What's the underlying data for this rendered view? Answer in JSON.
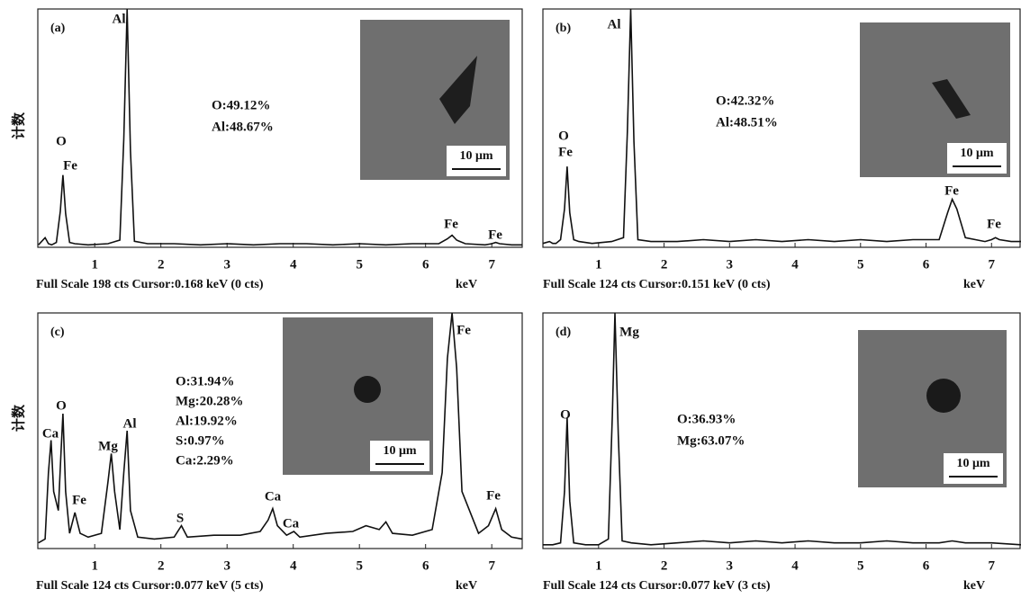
{
  "chart_data": [
    {
      "type": "line",
      "panel_label": "(a)",
      "ylabel": "计数",
      "color": "#111",
      "x": [
        0.15,
        0.25,
        0.3,
        0.35,
        0.42,
        0.48,
        0.52,
        0.56,
        0.62,
        0.7,
        0.9,
        1.2,
        1.38,
        1.44,
        1.49,
        1.54,
        1.6,
        1.8,
        2.2,
        2.6,
        3.0,
        3.4,
        3.8,
        4.2,
        4.6,
        5.0,
        5.4,
        5.8,
        6.2,
        6.33,
        6.4,
        6.47,
        6.6,
        6.9,
        7.0,
        7.06,
        7.12,
        7.3,
        7.46
      ],
      "values": [
        2,
        8,
        3,
        2,
        4,
        30,
        60,
        28,
        4,
        3,
        2,
        3,
        6,
        90,
        198,
        80,
        5,
        3,
        3,
        2,
        3,
        2,
        3,
        3,
        2,
        3,
        2,
        3,
        3,
        7,
        10,
        6,
        3,
        2,
        3,
        4,
        3,
        2,
        2
      ],
      "xlim": [
        0.14,
        7.46
      ],
      "ylim": [
        0,
        198
      ],
      "xticks": [
        1,
        2,
        3,
        4,
        5,
        6,
        7
      ],
      "peak_labels": [
        "Al",
        "O",
        "Fe",
        "Fe",
        "Fe"
      ],
      "composition": [
        "O:49.12%",
        "Al:48.67%"
      ],
      "scale_bar": "10 μm",
      "footer": "Full Scale 198 cts Cursor:0.168 keV (0 cts)",
      "xlabel": "keV"
    },
    {
      "type": "line",
      "panel_label": "(b)",
      "color": "#111",
      "x": [
        0.15,
        0.25,
        0.3,
        0.35,
        0.42,
        0.48,
        0.52,
        0.56,
        0.62,
        0.7,
        0.9,
        1.2,
        1.38,
        1.44,
        1.49,
        1.54,
        1.6,
        1.8,
        2.2,
        2.6,
        3.0,
        3.4,
        3.8,
        4.2,
        4.6,
        5.0,
        5.4,
        5.8,
        6.2,
        6.33,
        6.4,
        6.47,
        6.6,
        6.9,
        7.0,
        7.06,
        7.12,
        7.3,
        7.45
      ],
      "values": [
        2,
        3,
        2,
        2,
        4,
        20,
        42,
        18,
        4,
        3,
        2,
        3,
        5,
        60,
        124,
        55,
        4,
        3,
        3,
        4,
        3,
        4,
        3,
        4,
        3,
        4,
        3,
        4,
        4,
        18,
        25,
        20,
        5,
        3,
        4,
        5,
        4,
        3,
        3
      ],
      "xlim": [
        0.15,
        7.45
      ],
      "ylim": [
        0,
        124
      ],
      "xticks": [
        1,
        2,
        3,
        4,
        5,
        6,
        7
      ],
      "peak_labels": [
        "Al",
        "O",
        "Fe",
        "Fe",
        "Fe"
      ],
      "composition": [
        "O:42.32%",
        "Al:48.51%"
      ],
      "scale_bar": "10 μm",
      "footer": "Full Scale 124 cts Cursor:0.151 keV (0 cts)",
      "xlabel": "keV"
    },
    {
      "type": "line",
      "panel_label": "(c)",
      "ylabel": "计数",
      "color": "#111",
      "x": [
        0.15,
        0.25,
        0.3,
        0.34,
        0.38,
        0.45,
        0.49,
        0.52,
        0.56,
        0.62,
        0.7,
        0.78,
        0.9,
        1.1,
        1.2,
        1.25,
        1.3,
        1.38,
        1.44,
        1.49,
        1.54,
        1.65,
        1.9,
        2.2,
        2.31,
        2.4,
        2.8,
        3.2,
        3.5,
        3.62,
        3.69,
        3.76,
        3.9,
        4.01,
        4.1,
        4.5,
        4.9,
        5.1,
        5.3,
        5.4,
        5.5,
        5.8,
        6.1,
        6.25,
        6.33,
        6.4,
        6.47,
        6.55,
        6.8,
        6.95,
        7.06,
        7.15,
        7.3,
        7.46
      ],
      "values": [
        3,
        5,
        40,
        57,
        30,
        20,
        50,
        71,
        30,
        8,
        19,
        8,
        6,
        8,
        35,
        50,
        30,
        10,
        40,
        62,
        20,
        6,
        5,
        6,
        12,
        6,
        7,
        7,
        9,
        15,
        21,
        12,
        7,
        9,
        6,
        8,
        9,
        12,
        10,
        14,
        8,
        7,
        10,
        40,
        100,
        124,
        95,
        30,
        8,
        12,
        21,
        10,
        6,
        5
      ],
      "xlim": [
        0.14,
        7.46
      ],
      "ylim": [
        0,
        124
      ],
      "xticks": [
        1,
        2,
        3,
        4,
        5,
        6,
        7
      ],
      "peak_labels": [
        "Fe",
        "O",
        "Ca",
        "Mg",
        "Al",
        "Fe",
        "S",
        "Ca",
        "Ca",
        "Fe"
      ],
      "composition": [
        "O:31.94%",
        "Mg:20.28%",
        "Al:19.92%",
        "S:0.97%",
        "Ca:2.29%"
      ],
      "scale_bar": "10 μm",
      "footer": "Full Scale 124 cts Cursor:0.077 keV (5 cts)",
      "xlabel": "keV"
    },
    {
      "type": "line",
      "panel_label": "(d)",
      "color": "#111",
      "x": [
        0.15,
        0.3,
        0.42,
        0.48,
        0.52,
        0.56,
        0.62,
        0.8,
        1.0,
        1.15,
        1.21,
        1.25,
        1.3,
        1.36,
        1.5,
        1.8,
        2.2,
        2.6,
        3.0,
        3.4,
        3.8,
        4.2,
        4.6,
        5.0,
        5.4,
        5.8,
        6.2,
        6.4,
        6.6,
        7.0,
        7.45
      ],
      "values": [
        2,
        2,
        3,
        30,
        69,
        25,
        3,
        2,
        2,
        5,
        70,
        124,
        60,
        4,
        3,
        2,
        3,
        4,
        3,
        4,
        3,
        4,
        3,
        3,
        4,
        3,
        3,
        4,
        3,
        3,
        2
      ],
      "xlim": [
        0.15,
        7.45
      ],
      "ylim": [
        0,
        124
      ],
      "xticks": [
        1,
        2,
        3,
        4,
        5,
        6,
        7
      ],
      "peak_labels": [
        "Mg",
        "O"
      ],
      "composition": [
        "O:36.93%",
        "Mg:63.07%"
      ],
      "scale_bar": "10 μm",
      "footer": "Full Scale 124 cts Cursor:0.077 keV (3 cts)",
      "xlabel": "keV"
    }
  ]
}
